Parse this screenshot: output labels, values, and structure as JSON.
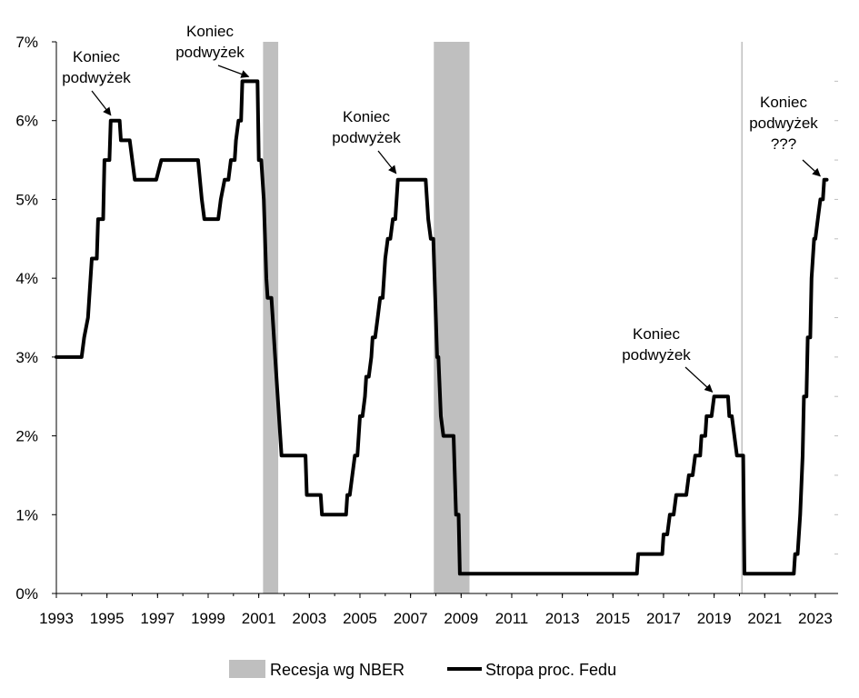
{
  "chart_data": {
    "type": "line",
    "title": "",
    "xlabel": "",
    "ylabel": "",
    "xlim": [
      1993,
      2023.9
    ],
    "ylim": [
      0,
      7
    ],
    "x_ticks": [
      1993,
      1995,
      1997,
      1999,
      2001,
      2003,
      2005,
      2007,
      2009,
      2011,
      2013,
      2015,
      2017,
      2019,
      2021,
      2023
    ],
    "x_tick_labels": [
      "1993",
      "1995",
      "1997",
      "1999",
      "2001",
      "2003",
      "2005",
      "2007",
      "2009",
      "2011",
      "2013",
      "2015",
      "2017",
      "2019",
      "2021",
      "2023"
    ],
    "y_ticks": [
      0,
      1,
      2,
      3,
      4,
      5,
      6,
      7
    ],
    "y_tick_labels": [
      "0%",
      "1%",
      "2%",
      "3%",
      "4%",
      "5%",
      "6%",
      "7%"
    ],
    "series": [
      {
        "name": "Stropa proc. Fedu",
        "color": "#000000",
        "points": [
          [
            1993.0,
            3.0
          ],
          [
            1994.0,
            3.0
          ],
          [
            1994.1,
            3.25
          ],
          [
            1994.25,
            3.5
          ],
          [
            1994.3,
            3.75
          ],
          [
            1994.4,
            4.25
          ],
          [
            1994.6,
            4.25
          ],
          [
            1994.65,
            4.75
          ],
          [
            1994.85,
            4.75
          ],
          [
            1994.9,
            5.5
          ],
          [
            1995.1,
            5.5
          ],
          [
            1995.15,
            6.0
          ],
          [
            1995.5,
            6.0
          ],
          [
            1995.55,
            5.75
          ],
          [
            1995.9,
            5.75
          ],
          [
            1996.0,
            5.5
          ],
          [
            1996.1,
            5.25
          ],
          [
            1996.95,
            5.25
          ],
          [
            1997.15,
            5.5
          ],
          [
            1998.6,
            5.5
          ],
          [
            1998.75,
            5.0
          ],
          [
            1998.85,
            4.75
          ],
          [
            1999.4,
            4.75
          ],
          [
            1999.5,
            5.0
          ],
          [
            1999.65,
            5.25
          ],
          [
            1999.8,
            5.25
          ],
          [
            1999.9,
            5.5
          ],
          [
            2000.05,
            5.5
          ],
          [
            2000.1,
            5.75
          ],
          [
            2000.2,
            6.0
          ],
          [
            2000.3,
            6.0
          ],
          [
            2000.35,
            6.5
          ],
          [
            2000.95,
            6.5
          ],
          [
            2001.0,
            5.5
          ],
          [
            2001.1,
            5.5
          ],
          [
            2001.2,
            5.0
          ],
          [
            2001.25,
            4.5
          ],
          [
            2001.3,
            4.0
          ],
          [
            2001.35,
            3.75
          ],
          [
            2001.5,
            3.75
          ],
          [
            2001.55,
            3.5
          ],
          [
            2001.65,
            3.0
          ],
          [
            2001.75,
            2.5
          ],
          [
            2001.85,
            2.0
          ],
          [
            2001.9,
            1.75
          ],
          [
            2002.85,
            1.75
          ],
          [
            2002.9,
            1.25
          ],
          [
            2003.45,
            1.25
          ],
          [
            2003.5,
            1.0
          ],
          [
            2004.45,
            1.0
          ],
          [
            2004.5,
            1.25
          ],
          [
            2004.6,
            1.25
          ],
          [
            2004.7,
            1.5
          ],
          [
            2004.8,
            1.75
          ],
          [
            2004.9,
            1.75
          ],
          [
            2004.95,
            2.0
          ],
          [
            2005.0,
            2.25
          ],
          [
            2005.1,
            2.25
          ],
          [
            2005.2,
            2.5
          ],
          [
            2005.25,
            2.75
          ],
          [
            2005.35,
            2.75
          ],
          [
            2005.45,
            3.0
          ],
          [
            2005.5,
            3.25
          ],
          [
            2005.6,
            3.25
          ],
          [
            2005.7,
            3.5
          ],
          [
            2005.8,
            3.75
          ],
          [
            2005.9,
            3.75
          ],
          [
            2006.0,
            4.25
          ],
          [
            2006.1,
            4.5
          ],
          [
            2006.2,
            4.5
          ],
          [
            2006.3,
            4.75
          ],
          [
            2006.4,
            4.75
          ],
          [
            2006.5,
            5.25
          ],
          [
            2007.6,
            5.25
          ],
          [
            2007.7,
            4.75
          ],
          [
            2007.8,
            4.5
          ],
          [
            2007.9,
            4.5
          ],
          [
            2008.0,
            3.5
          ],
          [
            2008.05,
            3.0
          ],
          [
            2008.1,
            3.0
          ],
          [
            2008.2,
            2.25
          ],
          [
            2008.3,
            2.0
          ],
          [
            2008.7,
            2.0
          ],
          [
            2008.8,
            1.0
          ],
          [
            2008.9,
            1.0
          ],
          [
            2008.95,
            0.25
          ],
          [
            2015.95,
            0.25
          ],
          [
            2016.0,
            0.5
          ],
          [
            2016.95,
            0.5
          ],
          [
            2017.0,
            0.75
          ],
          [
            2017.15,
            0.75
          ],
          [
            2017.25,
            1.0
          ],
          [
            2017.4,
            1.0
          ],
          [
            2017.5,
            1.25
          ],
          [
            2017.9,
            1.25
          ],
          [
            2018.0,
            1.5
          ],
          [
            2018.15,
            1.5
          ],
          [
            2018.25,
            1.75
          ],
          [
            2018.45,
            1.75
          ],
          [
            2018.5,
            2.0
          ],
          [
            2018.65,
            2.0
          ],
          [
            2018.7,
            2.25
          ],
          [
            2018.9,
            2.25
          ],
          [
            2019.0,
            2.5
          ],
          [
            2019.55,
            2.5
          ],
          [
            2019.6,
            2.25
          ],
          [
            2019.7,
            2.25
          ],
          [
            2019.8,
            2.0
          ],
          [
            2019.9,
            1.75
          ],
          [
            2020.15,
            1.75
          ],
          [
            2020.2,
            0.25
          ],
          [
            2022.15,
            0.25
          ],
          [
            2022.2,
            0.5
          ],
          [
            2022.3,
            0.5
          ],
          [
            2022.4,
            1.0
          ],
          [
            2022.5,
            1.75
          ],
          [
            2022.55,
            2.5
          ],
          [
            2022.65,
            2.5
          ],
          [
            2022.7,
            3.25
          ],
          [
            2022.8,
            3.25
          ],
          [
            2022.85,
            4.0
          ],
          [
            2022.95,
            4.5
          ],
          [
            2023.0,
            4.5
          ],
          [
            2023.1,
            4.75
          ],
          [
            2023.2,
            5.0
          ],
          [
            2023.3,
            5.0
          ],
          [
            2023.35,
            5.25
          ],
          [
            2023.45,
            5.25
          ]
        ]
      }
    ],
    "recessions": [
      {
        "start": 2001.17,
        "end": 2001.77
      },
      {
        "start": 2007.92,
        "end": 2009.33
      }
    ],
    "vertical_marker": {
      "x": 2020.1
    },
    "annotations": [
      {
        "lines": [
          "Koniec",
          "podwyżek"
        ],
        "target": [
          1995.15,
          6.0
        ]
      },
      {
        "lines": [
          "Koniec",
          "podwyżek"
        ],
        "target": [
          2000.6,
          6.5
        ]
      },
      {
        "lines": [
          "Koniec",
          "podwyżek"
        ],
        "target": [
          2006.5,
          5.25
        ]
      },
      {
        "lines": [
          "Koniec",
          "podwyżek"
        ],
        "target": [
          2019.0,
          2.5
        ]
      },
      {
        "lines": [
          "Koniec",
          "podwyżek",
          "???"
        ],
        "target": [
          2023.3,
          5.25
        ]
      }
    ],
    "legend": {
      "position": "bottom",
      "items": [
        {
          "label": "Recesja wg NBER",
          "kind": "patch",
          "color": "#bfbfbf"
        },
        {
          "label": "Stropa proc. Fedu",
          "kind": "line",
          "color": "#000000"
        }
      ]
    },
    "colors": {
      "recession": "#bfbfbf",
      "line": "#000000",
      "marker": "#bfbfbf",
      "axis": "#000000"
    }
  }
}
